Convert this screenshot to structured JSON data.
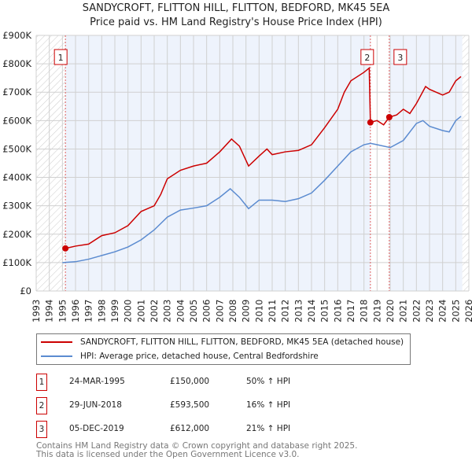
{
  "title": "SANDYCROFT, FLITTON HILL, FLITTON, BEDFORD, MK45 5EA",
  "subtitle": "Price paid vs. HM Land Registry's House Price Index (HPI)",
  "chart_data": {
    "type": "line",
    "xlim": [
      1993,
      2026
    ],
    "ylim": [
      0,
      900000
    ],
    "x_ticks": [
      "1993",
      "1994",
      "1995",
      "1996",
      "1997",
      "1998",
      "1999",
      "2000",
      "2001",
      "2002",
      "2003",
      "2004",
      "2005",
      "2006",
      "2007",
      "2008",
      "2009",
      "2010",
      "2011",
      "2012",
      "2013",
      "2014",
      "2015",
      "2016",
      "2017",
      "2018",
      "2019",
      "2020",
      "2021",
      "2022",
      "2023",
      "2024",
      "2025",
      "2026"
    ],
    "y_ticks": [
      {
        "v": 0,
        "label": "£0"
      },
      {
        "v": 100000,
        "label": "£100K"
      },
      {
        "v": 200000,
        "label": "£200K"
      },
      {
        "v": 300000,
        "label": "£300K"
      },
      {
        "v": 400000,
        "label": "£400K"
      },
      {
        "v": 500000,
        "label": "£500K"
      },
      {
        "v": 600000,
        "label": "£600K"
      },
      {
        "v": 700000,
        "label": "£700K"
      },
      {
        "v": 800000,
        "label": "£800K"
      },
      {
        "v": 900000,
        "label": "£900K"
      }
    ],
    "series": [
      {
        "name": "SANDYCROFT, FLITTON HILL, FLITTON, BEDFORD, MK45 5EA (detached house)",
        "color": "#cc0000",
        "points": [
          [
            1995.23,
            150000
          ],
          [
            1996,
            158000
          ],
          [
            1997,
            165000
          ],
          [
            1998,
            195000
          ],
          [
            1999,
            205000
          ],
          [
            2000,
            230000
          ],
          [
            2001,
            280000
          ],
          [
            2002,
            300000
          ],
          [
            2002.5,
            340000
          ],
          [
            2003,
            395000
          ],
          [
            2004,
            425000
          ],
          [
            2005,
            440000
          ],
          [
            2006,
            450000
          ],
          [
            2006.5,
            470000
          ],
          [
            2007,
            490000
          ],
          [
            2007.9,
            535000
          ],
          [
            2008.5,
            510000
          ],
          [
            2009.2,
            440000
          ],
          [
            2010,
            475000
          ],
          [
            2010.6,
            500000
          ],
          [
            2011,
            480000
          ],
          [
            2012,
            490000
          ],
          [
            2013,
            495000
          ],
          [
            2014,
            515000
          ],
          [
            2015,
            575000
          ],
          [
            2016,
            640000
          ],
          [
            2016.5,
            700000
          ],
          [
            2017,
            740000
          ],
          [
            2018,
            770000
          ],
          [
            2018.4,
            785000
          ],
          [
            2018.49,
            593500
          ],
          [
            2019,
            600000
          ],
          [
            2019.5,
            585000
          ],
          [
            2019.93,
            612000
          ],
          [
            2020.5,
            620000
          ],
          [
            2021,
            640000
          ],
          [
            2021.5,
            625000
          ],
          [
            2022,
            660000
          ],
          [
            2022.7,
            720000
          ],
          [
            2023,
            710000
          ],
          [
            2024,
            690000
          ],
          [
            2024.5,
            700000
          ],
          [
            2025,
            740000
          ],
          [
            2025.4,
            755000
          ]
        ]
      },
      {
        "name": "HPI: Average price, detached house, Central Bedfordshire",
        "color": "#5b8bd0",
        "points": [
          [
            1995,
            100000
          ],
          [
            1996,
            103000
          ],
          [
            1997,
            112000
          ],
          [
            1998,
            125000
          ],
          [
            1999,
            138000
          ],
          [
            2000,
            155000
          ],
          [
            2001,
            180000
          ],
          [
            2002,
            215000
          ],
          [
            2003,
            260000
          ],
          [
            2004,
            285000
          ],
          [
            2005,
            292000
          ],
          [
            2006,
            300000
          ],
          [
            2007,
            330000
          ],
          [
            2007.8,
            360000
          ],
          [
            2008.5,
            330000
          ],
          [
            2009.2,
            290000
          ],
          [
            2010,
            320000
          ],
          [
            2011,
            320000
          ],
          [
            2012,
            315000
          ],
          [
            2013,
            325000
          ],
          [
            2014,
            345000
          ],
          [
            2015,
            390000
          ],
          [
            2016,
            440000
          ],
          [
            2017,
            490000
          ],
          [
            2018,
            515000
          ],
          [
            2018.5,
            520000
          ],
          [
            2019,
            515000
          ],
          [
            2020,
            505000
          ],
          [
            2021,
            530000
          ],
          [
            2022,
            590000
          ],
          [
            2022.5,
            600000
          ],
          [
            2023,
            580000
          ],
          [
            2024,
            565000
          ],
          [
            2024.5,
            560000
          ],
          [
            2025,
            600000
          ],
          [
            2025.4,
            615000
          ]
        ]
      }
    ],
    "sales": [
      {
        "n": "1",
        "x": 1995.23,
        "y": 150000
      },
      {
        "n": "2",
        "x": 2018.49,
        "y": 593500
      },
      {
        "n": "3",
        "x": 2019.93,
        "y": 612000
      }
    ],
    "data_end": 2025.5
  },
  "legend": [
    "SANDYCROFT, FLITTON HILL, FLITTON, BEDFORD, MK45 5EA (detached house)",
    "HPI: Average price, detached house, Central Bedfordshire"
  ],
  "table": [
    {
      "n": "1",
      "date": "24-MAR-1995",
      "price": "£150,000",
      "hpi": "50% ↑ HPI"
    },
    {
      "n": "2",
      "date": "29-JUN-2018",
      "price": "£593,500",
      "hpi": "16% ↑ HPI"
    },
    {
      "n": "3",
      "date": "05-DEC-2019",
      "price": "£612,000",
      "hpi": "21% ↑ HPI"
    }
  ],
  "footer": [
    "Contains HM Land Registry data © Crown copyright and database right 2025.",
    "This data is licensed under the Open Government Licence v3.0."
  ]
}
